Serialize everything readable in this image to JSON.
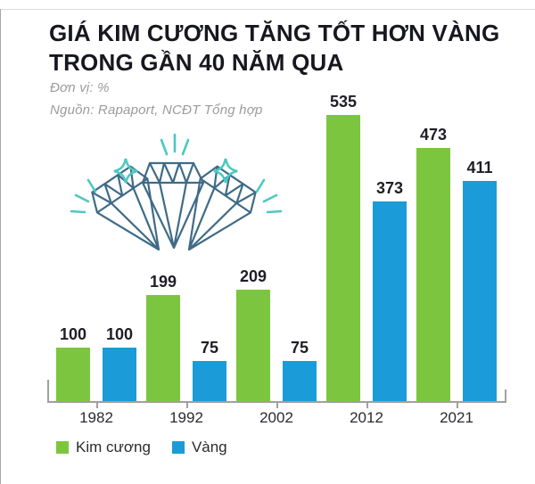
{
  "page": {
    "title_line1": "GIÁ KIM CƯƠNG TĂNG TỐT HƠN VÀNG",
    "title_line2": "TRONG GẦN 40 NĂM QUA",
    "unit_label": "Đơn vị: %",
    "source_label": "Nguồn: Rapaport, NCĐT Tổng hợp"
  },
  "colors": {
    "diamond_series": "#7cc63f",
    "gold_series": "#1b9bd7",
    "title_text": "#17171f",
    "muted_text": "#9b9b9b",
    "axis": "#a0a0a0",
    "illustration_outline": "#3f6b87",
    "illustration_sparkle": "#4cc8c2"
  },
  "chart_data": {
    "type": "bar",
    "title": "GIÁ KIM CƯƠNG TĂNG TỐT HƠN VÀNG TRONG GẦN 40 NĂM QUA",
    "unit": "%",
    "source": "Nguồn: Rapaport, NCĐT Tổng hợp",
    "categories": [
      "1982",
      "1992",
      "2002",
      "2012",
      "2021"
    ],
    "series": [
      {
        "name": "Kim cương",
        "color": "#7cc63f",
        "values": [
          100,
          199,
          209,
          535,
          473
        ]
      },
      {
        "name": "Vàng",
        "color": "#1b9bd7",
        "values": [
          100,
          75,
          75,
          373,
          411
        ]
      }
    ],
    "ylim": [
      0,
      560
    ],
    "grid": false,
    "legend_position": "bottom",
    "value_labels": true
  }
}
